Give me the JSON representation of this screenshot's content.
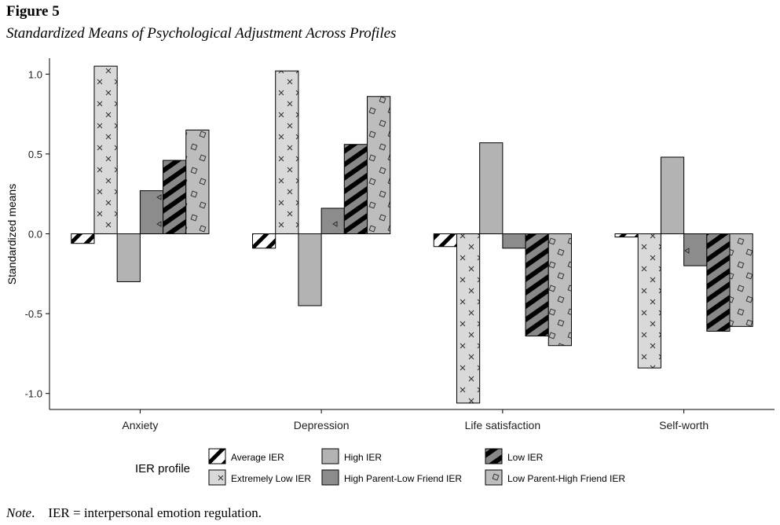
{
  "figure": {
    "label": "Figure 5",
    "title": "Standardized Means of Psychological Adjustment Across Profiles",
    "note_label": "Note",
    "note_text": "IER = interpersonal emotion regulation."
  },
  "chart_data": {
    "type": "bar",
    "title": "Standardized Means of Psychological Adjustment Across Profiles",
    "xlabel": "",
    "ylabel": "Standardized means",
    "ylim": [
      -1.1,
      1.1
    ],
    "yticks": [
      -1.0,
      -0.5,
      0.0,
      0.5,
      1.0
    ],
    "ytick_labels": [
      "-1.0",
      "-0.5",
      "0.0",
      "0.5",
      "1.0"
    ],
    "grid": false,
    "legend_title": "IER profile",
    "legend_position": "bottom",
    "categories": [
      "Anxiety",
      "Depression",
      "Life satisfaction",
      "Self-worth"
    ],
    "series": [
      {
        "name": "Average IER",
        "values": [
          -0.06,
          -0.09,
          -0.08,
          -0.02
        ],
        "fill": "#ffffff",
        "pattern": "crosshatch-stripes"
      },
      {
        "name": "Extremely Low IER",
        "values": [
          1.05,
          1.02,
          -1.06,
          -0.84
        ],
        "fill": "#d9d9d9",
        "pattern": "crosses"
      },
      {
        "name": "High IER",
        "values": [
          -0.3,
          -0.45,
          0.57,
          0.48
        ],
        "fill": "#b3b3b3",
        "pattern": "none"
      },
      {
        "name": "High Parent-Low Friend IER",
        "values": [
          0.27,
          0.16,
          -0.09,
          -0.2
        ],
        "fill": "#8c8c8c",
        "pattern": "triangles"
      },
      {
        "name": "Low IER",
        "values": [
          0.46,
          0.56,
          -0.64,
          -0.61
        ],
        "fill": "#888888",
        "pattern": "stripes"
      },
      {
        "name": "Low Parent-High Friend IER",
        "values": [
          0.65,
          0.86,
          -0.7,
          -0.58
        ],
        "fill": "#bdbdbd",
        "pattern": "diamonds"
      }
    ]
  }
}
